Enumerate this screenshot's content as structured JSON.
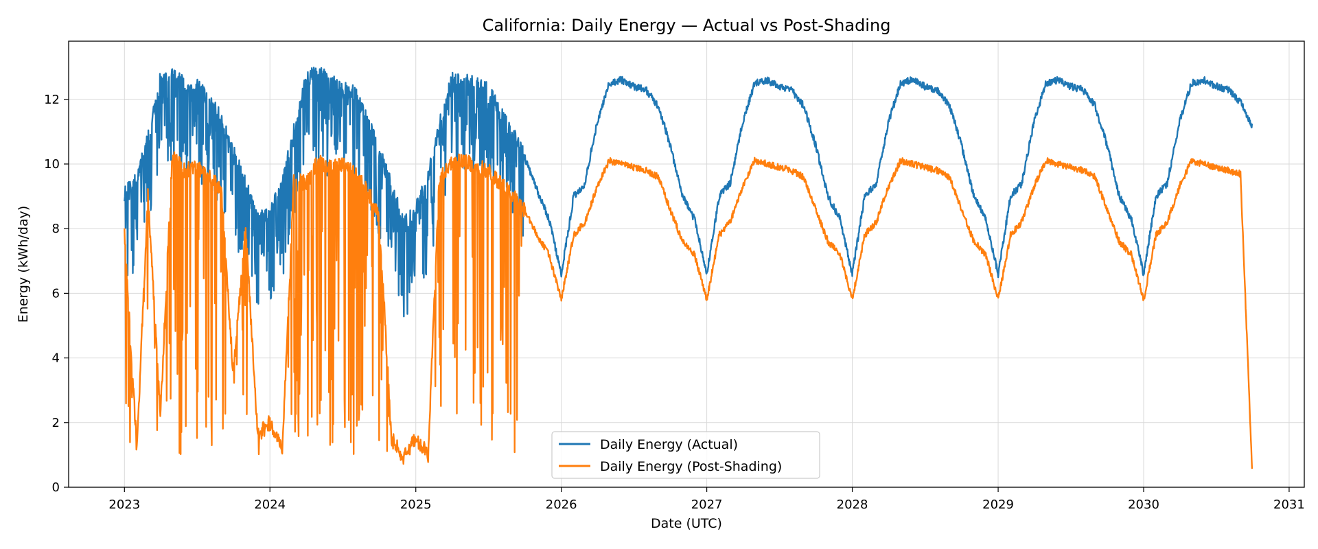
{
  "chart_data": {
    "type": "line",
    "title": "California: Daily Energy — Actual vs Post-Shading",
    "xlabel": "Date (UTC)",
    "ylabel": "Energy (kWh/day)",
    "x_ticks": [
      "2023",
      "2024",
      "2025",
      "2026",
      "2027",
      "2028",
      "2029",
      "2030",
      "2031"
    ],
    "y_ticks": [
      "0",
      "2",
      "4",
      "6",
      "8",
      "10",
      "12"
    ],
    "xlim": [
      "2022-08-14",
      "2031-02-08"
    ],
    "ylim": [
      0,
      13.8
    ],
    "x_range": [
      "2023-01-01",
      "2030-09-30"
    ],
    "grid": true,
    "legend_position": "bottom-center",
    "series": [
      {
        "name": "Daily Energy (Actual)",
        "color": "#1f77b4",
        "x": [
          "2023-01-01",
          "2023-02-01",
          "2023-03-01",
          "2023-04-01",
          "2023-05-01",
          "2023-06-01",
          "2023-07-01",
          "2023-08-01",
          "2023-09-01",
          "2023-10-01",
          "2023-11-01",
          "2023-12-01",
          "2024-01-01",
          "2024-02-01",
          "2024-03-01",
          "2024-04-01",
          "2024-05-01",
          "2024-06-01",
          "2024-07-01",
          "2024-08-01",
          "2024-09-01",
          "2024-10-01",
          "2024-11-01",
          "2024-12-01",
          "2025-01-01",
          "2025-02-01",
          "2025-03-01",
          "2025-04-01",
          "2025-05-01",
          "2025-06-01",
          "2025-07-01",
          "2025-08-01",
          "2025-09-01",
          "2025-10-01",
          "2025-11-01",
          "2025-12-01",
          "2026-01-01",
          "2026-02-01",
          "2026-03-01",
          "2026-04-01",
          "2026-05-01",
          "2026-06-01",
          "2026-07-01",
          "2026-08-01",
          "2026-09-01",
          "2026-10-01",
          "2026-11-01",
          "2026-12-01",
          "2027-01-01",
          "2027-02-01",
          "2027-03-01",
          "2027-04-01",
          "2027-05-01",
          "2027-06-01",
          "2027-07-01",
          "2027-08-01",
          "2027-09-01",
          "2027-10-01",
          "2027-11-01",
          "2027-12-01",
          "2028-01-01",
          "2028-02-01",
          "2028-03-01",
          "2028-04-01",
          "2028-05-01",
          "2028-06-01",
          "2028-07-01",
          "2028-08-01",
          "2028-09-01",
          "2028-10-01",
          "2028-11-01",
          "2028-12-01",
          "2029-01-01",
          "2029-02-01",
          "2029-03-01",
          "2029-04-01",
          "2029-05-01",
          "2029-06-01",
          "2029-07-01",
          "2029-08-01",
          "2029-09-01",
          "2029-10-01",
          "2029-11-01",
          "2029-12-01",
          "2030-01-01",
          "2030-02-01",
          "2030-03-01",
          "2030-04-01",
          "2030-05-01",
          "2030-06-01",
          "2030-07-01",
          "2030-08-01",
          "2030-09-01",
          "2030-09-30"
        ],
        "y": [
          9.1,
          9.5,
          10.8,
          12.6,
          12.8,
          12.5,
          12.4,
          12.0,
          11.4,
          10.4,
          9.4,
          8.3,
          8.5,
          9.4,
          11.0,
          12.6,
          12.9,
          12.5,
          12.4,
          12.2,
          11.4,
          10.4,
          9.3,
          8.2,
          8.6,
          9.6,
          11.2,
          12.6,
          12.7,
          12.5,
          12.3,
          11.6,
          11.0,
          10.2,
          9.2,
          8.3,
          6.6,
          9.0,
          9.4,
          11.3,
          12.5,
          12.6,
          12.4,
          12.3,
          11.8,
          10.6,
          9.0,
          8.3,
          6.6,
          9.0,
          9.4,
          11.3,
          12.5,
          12.6,
          12.4,
          12.3,
          11.8,
          10.6,
          9.0,
          8.3,
          6.6,
          9.0,
          9.4,
          11.3,
          12.5,
          12.6,
          12.4,
          12.3,
          11.8,
          10.6,
          9.0,
          8.3,
          6.6,
          9.0,
          9.4,
          11.3,
          12.5,
          12.6,
          12.4,
          12.3,
          11.8,
          10.6,
          9.0,
          8.3,
          6.6,
          9.0,
          9.4,
          11.3,
          12.5,
          12.6,
          12.4,
          12.3,
          11.9,
          11.2
        ]
      },
      {
        "name": "Daily Energy (Post-Shading)",
        "color": "#ff7f0e",
        "x": [
          "2023-01-01",
          "2023-02-01",
          "2023-03-01",
          "2023-04-01",
          "2023-05-01",
          "2023-06-01",
          "2023-07-01",
          "2023-08-01",
          "2023-09-01",
          "2023-10-01",
          "2023-11-01",
          "2023-12-01",
          "2024-01-01",
          "2024-02-01",
          "2024-03-01",
          "2024-04-01",
          "2024-05-01",
          "2024-06-01",
          "2024-07-01",
          "2024-08-01",
          "2024-09-01",
          "2024-10-01",
          "2024-11-01",
          "2024-12-01",
          "2025-01-01",
          "2025-02-01",
          "2025-03-01",
          "2025-04-01",
          "2025-05-01",
          "2025-06-01",
          "2025-07-01",
          "2025-08-01",
          "2025-09-01",
          "2025-10-01",
          "2025-11-01",
          "2025-12-01",
          "2026-01-01",
          "2026-02-01",
          "2026-03-01",
          "2026-04-01",
          "2026-05-01",
          "2026-06-01",
          "2026-07-01",
          "2026-08-01",
          "2026-09-01",
          "2026-10-01",
          "2026-11-01",
          "2026-12-01",
          "2027-01-01",
          "2027-02-01",
          "2027-03-01",
          "2027-04-01",
          "2027-05-01",
          "2027-06-01",
          "2027-07-01",
          "2027-08-01",
          "2027-09-01",
          "2027-10-01",
          "2027-11-01",
          "2027-12-01",
          "2028-01-01",
          "2028-02-01",
          "2028-03-01",
          "2028-04-01",
          "2028-05-01",
          "2028-06-01",
          "2028-07-01",
          "2028-08-01",
          "2028-09-01",
          "2028-10-01",
          "2028-11-01",
          "2028-12-01",
          "2029-01-01",
          "2029-02-01",
          "2029-03-01",
          "2029-04-01",
          "2029-05-01",
          "2029-06-01",
          "2029-07-01",
          "2029-08-01",
          "2029-09-01",
          "2029-10-01",
          "2029-11-01",
          "2029-12-01",
          "2030-01-01",
          "2030-02-01",
          "2030-03-01",
          "2030-04-01",
          "2030-05-01",
          "2030-06-01",
          "2030-07-01",
          "2030-08-01",
          "2030-09-01",
          "2030-09-30"
        ],
        "y": [
          7.8,
          1.2,
          9.0,
          2.2,
          10.2,
          9.8,
          9.9,
          9.6,
          9.2,
          3.5,
          8.0,
          1.6,
          2.0,
          1.1,
          9.5,
          9.4,
          10.1,
          9.9,
          10.0,
          9.7,
          9.2,
          8.4,
          1.5,
          0.9,
          1.5,
          1.0,
          9.6,
          10.0,
          10.1,
          9.9,
          9.8,
          9.4,
          9.0,
          8.6,
          7.8,
          7.2,
          5.8,
          7.8,
          8.2,
          9.3,
          10.1,
          10.0,
          9.9,
          9.8,
          9.6,
          8.6,
          7.6,
          7.2,
          5.8,
          7.8,
          8.2,
          9.3,
          10.1,
          10.0,
          9.9,
          9.8,
          9.6,
          8.6,
          7.6,
          7.2,
          5.8,
          7.8,
          8.2,
          9.3,
          10.1,
          10.0,
          9.9,
          9.8,
          9.6,
          8.6,
          7.6,
          7.2,
          5.8,
          7.8,
          8.2,
          9.3,
          10.1,
          10.0,
          9.9,
          9.8,
          9.6,
          8.6,
          7.6,
          7.2,
          5.8,
          7.8,
          8.2,
          9.3,
          10.1,
          10.0,
          9.9,
          9.8,
          9.7,
          0.6
        ]
      }
    ]
  }
}
